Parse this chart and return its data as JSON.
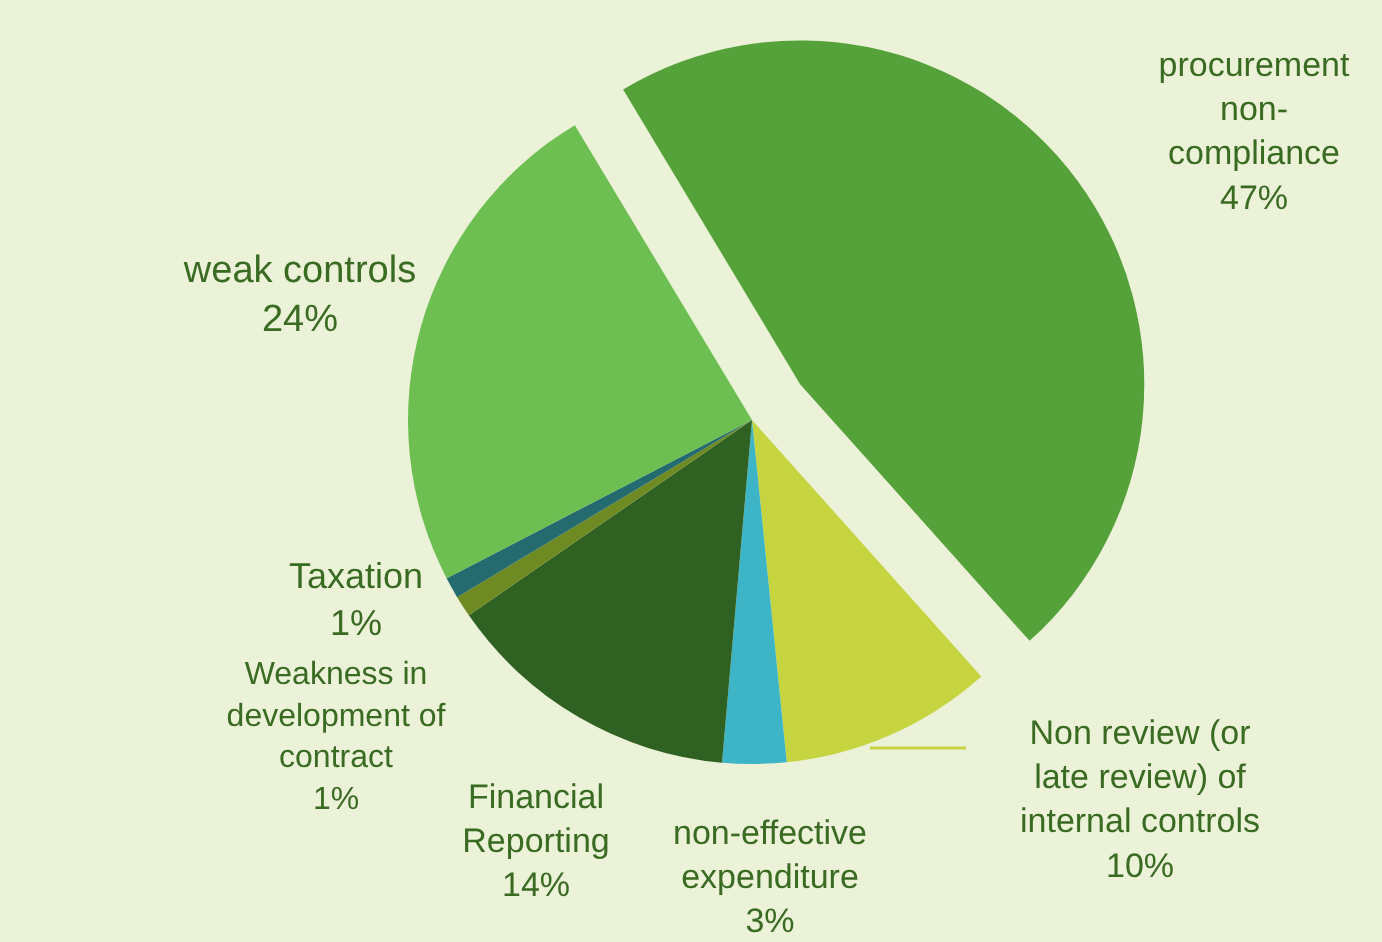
{
  "chart_data": {
    "type": "pie",
    "categories": [
      "procurement non-compliance",
      "Non review (or late review) of internal controls",
      "non-effective expenditure",
      "Financial Reporting",
      "Weakness in development of contract",
      "Taxation",
      "weak controls"
    ],
    "values": [
      47,
      10,
      3,
      14,
      1,
      1,
      24
    ],
    "value_labels": [
      "47%",
      "10%",
      "3%",
      "14%",
      "1%",
      "1%",
      "24%"
    ],
    "colors": [
      "#56a23a",
      "#c6d43f",
      "#3db5c6",
      "#2f6123",
      "#6f8a22",
      "#246b70",
      "#6dbf52"
    ]
  }
}
